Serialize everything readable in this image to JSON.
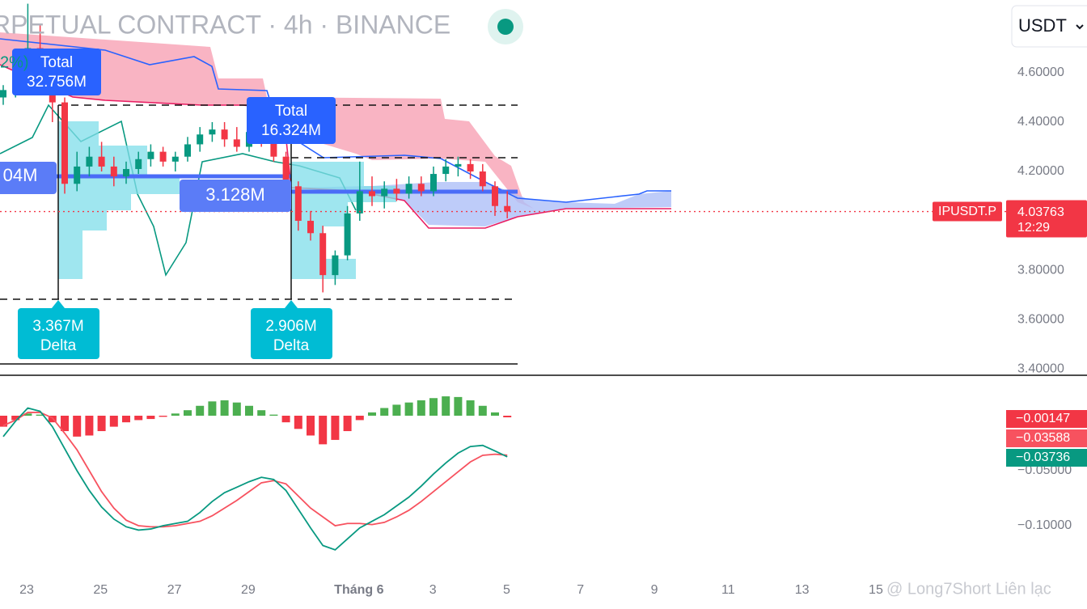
{
  "header": {
    "title": "RPETUAL CONTRACT · 4h · BINANCE",
    "percent": "2%)",
    "currency": "USDT",
    "watermark": "@ Long7Short Liên lạc"
  },
  "chart_data": {
    "type": "candlestick",
    "symbol": "IPUSDT.P",
    "timer": "12:29",
    "up_color": "#089981",
    "down_color": "#f23645",
    "open": [
      4.5,
      4.53,
      4.58,
      4.7,
      4.55,
      4.48,
      4.15,
      4.22,
      4.26,
      4.22,
      4.18,
      4.21,
      4.25,
      4.28,
      4.24,
      4.26,
      4.31,
      4.35,
      4.37,
      4.33,
      4.3,
      4.36,
      4.32,
      4.26,
      4.14,
      4.0,
      3.95,
      3.78,
      3.86,
      4.03,
      4.12,
      4.1,
      4.13,
      4.11,
      4.15,
      4.12,
      4.19,
      4.22,
      4.23,
      4.2,
      4.14,
      4.06
    ],
    "high": [
      4.55,
      4.62,
      4.88,
      4.8,
      4.6,
      4.5,
      4.28,
      4.3,
      4.32,
      4.26,
      4.24,
      4.28,
      4.31,
      4.3,
      4.28,
      4.34,
      4.38,
      4.4,
      4.4,
      4.38,
      4.41,
      4.4,
      4.35,
      4.28,
      4.16,
      4.04,
      3.98,
      3.88,
      4.06,
      4.24,
      4.18,
      4.16,
      4.17,
      4.18,
      4.18,
      4.22,
      4.25,
      4.26,
      4.25,
      4.23,
      4.16,
      4.12
    ],
    "low": [
      4.47,
      4.5,
      4.55,
      4.52,
      4.4,
      4.11,
      4.12,
      4.18,
      4.2,
      4.14,
      4.15,
      4.19,
      4.22,
      4.22,
      4.2,
      4.24,
      4.28,
      4.32,
      4.3,
      4.28,
      4.28,
      4.3,
      4.24,
      4.1,
      3.96,
      3.92,
      3.71,
      3.74,
      3.84,
      4.0,
      4.06,
      4.05,
      4.08,
      4.09,
      4.1,
      4.1,
      4.16,
      4.18,
      4.17,
      4.12,
      4.02,
      4.01
    ],
    "close": [
      4.53,
      4.58,
      4.7,
      4.55,
      4.48,
      4.15,
      4.22,
      4.26,
      4.22,
      4.18,
      4.21,
      4.25,
      4.28,
      4.24,
      4.26,
      4.31,
      4.35,
      4.37,
      4.33,
      4.3,
      4.36,
      4.32,
      4.26,
      4.14,
      4.0,
      3.95,
      3.78,
      3.86,
      4.03,
      4.12,
      4.1,
      4.13,
      4.11,
      4.15,
      4.12,
      4.19,
      4.22,
      4.23,
      4.2,
      4.14,
      4.06,
      4.03763
    ],
    "ylim": [
      3.374,
      4.895
    ],
    "yticks": [
      {
        "value": 4.6,
        "label": "4.60000"
      },
      {
        "value": 4.4,
        "label": "4.40000"
      },
      {
        "value": 4.2,
        "label": "4.20000"
      },
      {
        "value": 3.8,
        "label": "3.80000"
      },
      {
        "value": 3.6,
        "label": "3.60000"
      },
      {
        "value": 3.4,
        "label": "3.40000"
      }
    ],
    "x_labels": [
      "23",
      "25",
      "27",
      "29",
      "Tháng 6",
      "3",
      "5",
      "7",
      "9",
      "11",
      "13",
      "15"
    ],
    "annotations": [
      {
        "title": "Total",
        "value": "32.756M"
      },
      {
        "title": "Total",
        "value": "16.324M"
      }
    ],
    "poc_labels": [
      "04M",
      "3.128M"
    ],
    "deltas": [
      {
        "value": "3.367M",
        "label": "Delta"
      },
      {
        "value": "2.906M",
        "label": "Delta"
      }
    ]
  },
  "macd": {
    "ylim": [
      -0.1456,
      0.0353
    ],
    "yticks": [
      {
        "value": -0.05,
        "label": "−0.05000"
      },
      {
        "value": -0.1,
        "label": "−0.10000"
      }
    ],
    "histogram": {
      "values": [
        -0.01,
        -0.004,
        0.002,
        0.001,
        -0.006,
        -0.014,
        -0.019,
        -0.018,
        -0.014,
        -0.01,
        -0.006,
        -0.004,
        -0.003,
        -0.001,
        0.002,
        0.005,
        0.009,
        0.013,
        0.014,
        0.012,
        0.009,
        0.005,
        0.001,
        -0.006,
        -0.012,
        -0.018,
        -0.026,
        -0.022,
        -0.014,
        -0.004,
        0.003,
        0.007,
        0.01,
        0.012,
        0.014,
        0.016,
        0.0176,
        0.017,
        0.014,
        0.009,
        0.003,
        -0.00147
      ],
      "value_label": "−0.00147",
      "up_color": "#4caf50",
      "down_color": "#f23645"
    },
    "macd_line": {
      "values": [
        -0.019,
        -0.005,
        0.007,
        0.004,
        -0.01,
        -0.03,
        -0.05,
        -0.068,
        -0.083,
        -0.094,
        -0.101,
        -0.104,
        -0.103,
        -0.1,
        -0.098,
        -0.096,
        -0.088,
        -0.078,
        -0.07,
        -0.065,
        -0.06,
        -0.056,
        -0.058,
        -0.068,
        -0.085,
        -0.102,
        -0.118,
        -0.122,
        -0.112,
        -0.102,
        -0.096,
        -0.09,
        -0.082,
        -0.074,
        -0.064,
        -0.053,
        -0.043,
        -0.034,
        -0.028,
        -0.027,
        -0.032,
        -0.03736
      ],
      "value_label": "−0.03736",
      "color": "#089981"
    },
    "signal_line": {
      "values": [
        -0.009,
        -0.004,
        0.003,
        0.003,
        -0.002,
        -0.016,
        -0.031,
        -0.05,
        -0.069,
        -0.084,
        -0.095,
        -0.1,
        -0.101,
        -0.101,
        -0.1,
        -0.098,
        -0.096,
        -0.091,
        -0.084,
        -0.077,
        -0.069,
        -0.061,
        -0.059,
        -0.062,
        -0.073,
        -0.084,
        -0.092,
        -0.1,
        -0.098,
        -0.098,
        -0.099,
        -0.097,
        -0.092,
        -0.086,
        -0.078,
        -0.069,
        -0.06,
        -0.051,
        -0.042,
        -0.036,
        -0.035,
        -0.03588
      ],
      "value_label": "−0.03588",
      "color": "#f7525f"
    }
  }
}
